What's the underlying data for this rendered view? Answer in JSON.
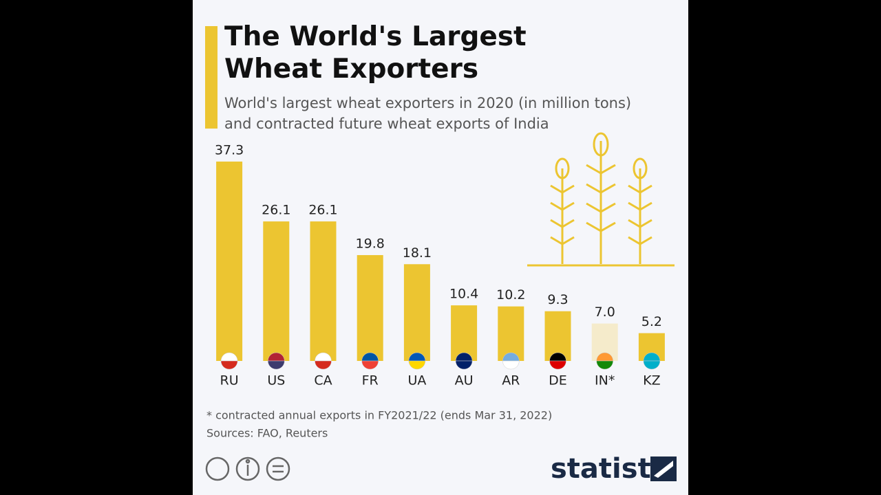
{
  "chart_data": {
    "type": "bar",
    "title": "The World's Largest Wheat Exporters",
    "subtitle": "World's largest wheat exporters in 2020 (in million tons) and contracted future wheat exports of India",
    "categories": [
      "RU",
      "US",
      "CA",
      "FR",
      "UA",
      "AU",
      "AR",
      "DE",
      "IN*",
      "KZ"
    ],
    "values": [
      37.3,
      26.1,
      26.1,
      19.8,
      18.1,
      10.4,
      10.2,
      9.3,
      7.0,
      5.2
    ],
    "value_labels": [
      "37.3",
      "26.1",
      "26.1",
      "19.8",
      "18.1",
      "10.4",
      "10.2",
      "9.3",
      "7.0",
      "5.2"
    ],
    "colors": [
      "#ecc531",
      "#ecc531",
      "#ecc531",
      "#ecc531",
      "#ecc531",
      "#ecc531",
      "#ecc531",
      "#ecc531",
      "#f5ebcb",
      "#ecc531"
    ],
    "footnote": "* contracted annual exports in FY2021/22 (ends Mar 31, 2022)",
    "source": "Sources: FAO, Reuters",
    "brand": "statista"
  }
}
